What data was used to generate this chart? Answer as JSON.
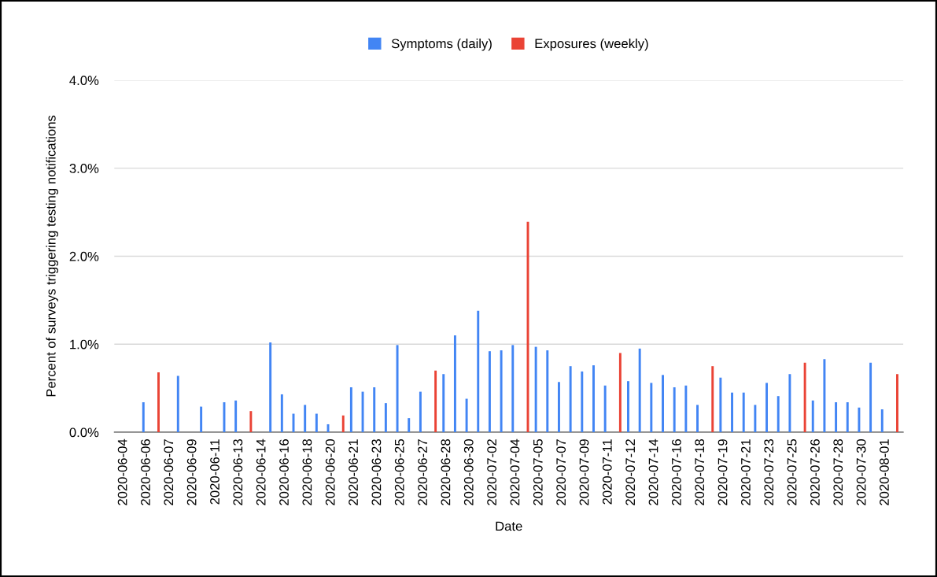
{
  "chart_data": {
    "type": "bar",
    "xlabel": "Date",
    "ylabel": "Percent of surveys triggering testing notifications",
    "categories": [
      "2020-06-04",
      null,
      "2020-06-06",
      null,
      "2020-06-07",
      null,
      "2020-06-09",
      null,
      "2020-06-11",
      null,
      "2020-06-13",
      null,
      "2020-06-14",
      null,
      "2020-06-16",
      null,
      "2020-06-18",
      null,
      "2020-06-20",
      null,
      "2020-06-21",
      null,
      "2020-06-23",
      null,
      "2020-06-25",
      null,
      "2020-06-27",
      null,
      "2020-06-28",
      null,
      "2020-06-30",
      null,
      "2020-07-02",
      null,
      "2020-07-04",
      null,
      "2020-07-05",
      null,
      "2020-07-07",
      null,
      "2020-07-09",
      null,
      "2020-07-11",
      null,
      "2020-07-12",
      null,
      "2020-07-14",
      null,
      "2020-07-16",
      null,
      "2020-07-18",
      null,
      "2020-07-19",
      null,
      "2020-07-21",
      null,
      "2020-07-23",
      null,
      "2020-07-25",
      null,
      "2020-07-26",
      null,
      "2020-07-28",
      null,
      "2020-07-30",
      null,
      "2020-08-01",
      null
    ],
    "series": [
      {
        "name": "Symptoms (daily)",
        "color": "#4285f4",
        "values": [
          null,
          null,
          0.34,
          null,
          null,
          0.64,
          null,
          0.29,
          null,
          0.34,
          0.36,
          null,
          null,
          1.02,
          0.43,
          0.21,
          0.31,
          0.21,
          0.09,
          null,
          0.51,
          0.46,
          0.51,
          0.33,
          0.99,
          0.16,
          0.46,
          null,
          0.66,
          1.1,
          0.38,
          1.38,
          0.92,
          0.93,
          0.99,
          null,
          0.97,
          0.93,
          0.57,
          0.75,
          0.69,
          0.76,
          0.53,
          null,
          0.58,
          0.95,
          0.56,
          0.65,
          0.51,
          0.53,
          0.31,
          null,
          0.62,
          0.45,
          0.45,
          0.31,
          0.56,
          0.41,
          0.66,
          null,
          0.36,
          0.83,
          0.34,
          0.34,
          0.28,
          0.79,
          0.26,
          null
        ]
      },
      {
        "name": "Exposures (weekly)",
        "color": "#ea4335",
        "values": [
          null,
          null,
          null,
          0.68,
          null,
          null,
          null,
          null,
          null,
          null,
          null,
          0.24,
          null,
          null,
          null,
          null,
          null,
          null,
          null,
          0.19,
          null,
          null,
          null,
          null,
          null,
          null,
          null,
          0.7,
          null,
          null,
          null,
          null,
          null,
          null,
          null,
          2.39,
          null,
          null,
          null,
          null,
          null,
          null,
          null,
          0.9,
          null,
          null,
          null,
          null,
          null,
          null,
          null,
          0.75,
          null,
          null,
          null,
          null,
          null,
          null,
          null,
          0.79,
          null,
          null,
          null,
          null,
          null,
          null,
          null,
          0.66
        ]
      }
    ],
    "ylim": [
      0,
      4
    ],
    "yticks": [
      {
        "value": 0,
        "label": "0.0%"
      },
      {
        "value": 1,
        "label": "1.0%"
      },
      {
        "value": 2,
        "label": "2.0%"
      },
      {
        "value": 3,
        "label": "3.0%"
      },
      {
        "value": 4,
        "label": "4.0%"
      }
    ],
    "grid": "y",
    "legend": "top"
  }
}
